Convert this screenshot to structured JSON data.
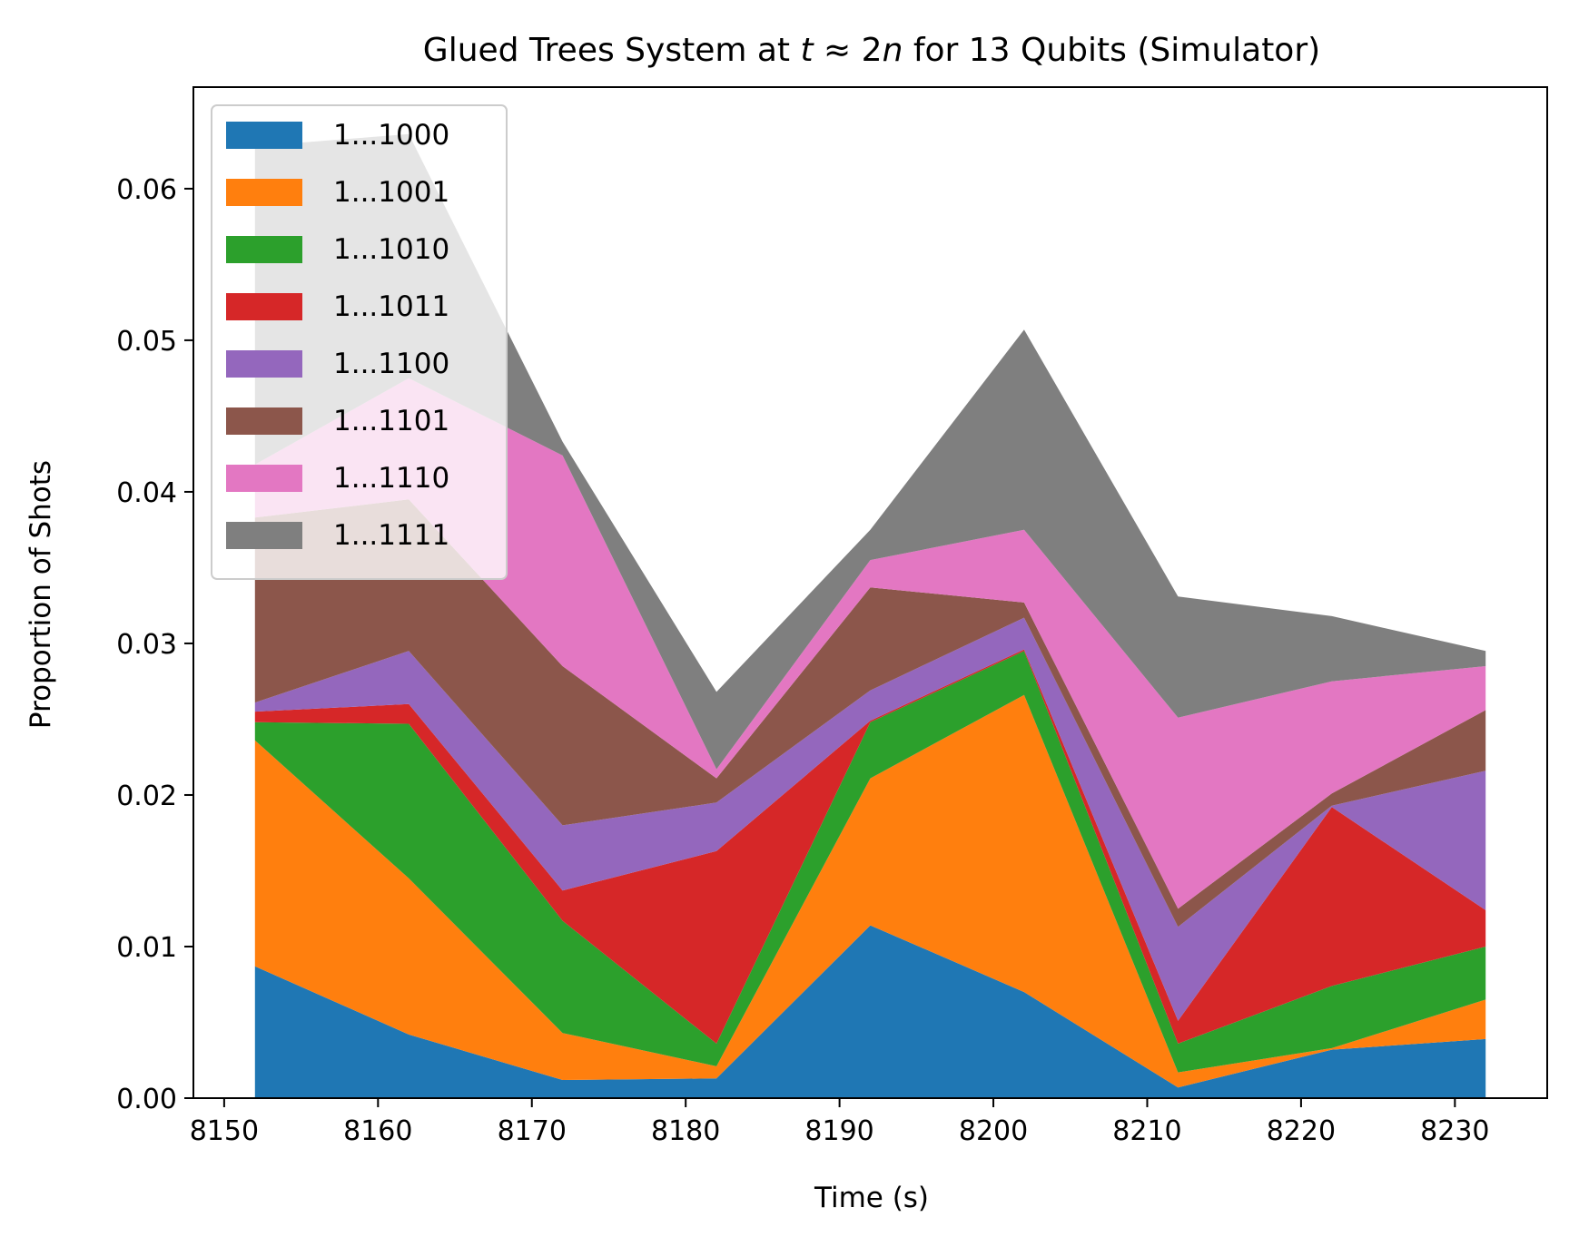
{
  "chart_data": {
    "type": "area",
    "stacked": true,
    "title_prefix": "Glued Trees System at ",
    "title_math_t": "t",
    "title_math_mid": " ≈ 2",
    "title_math_n": "n",
    "title_suffix": " for 13 Qubits (Simulator)",
    "xlabel": "Time (s)",
    "ylabel": "Proportion of Shots",
    "xlim": [
      8148,
      8236
    ],
    "ylim": [
      0,
      0.0667
    ],
    "xticks": [
      8150,
      8160,
      8170,
      8180,
      8190,
      8200,
      8210,
      8220,
      8230
    ],
    "xtick_labels": [
      "8150",
      "8160",
      "8170",
      "8180",
      "8190",
      "8200",
      "8210",
      "8220",
      "8230"
    ],
    "yticks": [
      0,
      0.01,
      0.02,
      0.03,
      0.04,
      0.05,
      0.06
    ],
    "ytick_labels": [
      "0.00",
      "0.01",
      "0.02",
      "0.03",
      "0.04",
      "0.05",
      "0.06"
    ],
    "legend_position": "upper-left",
    "grid": false,
    "x": [
      8152,
      8162,
      8172,
      8182,
      8192,
      8202,
      8212,
      8222,
      8232
    ],
    "series": [
      {
        "name": "1...1000",
        "color": "#1f77b4",
        "values": [
          0.0087,
          0.0042,
          0.0012,
          0.0013,
          0.0114,
          0.007,
          0.0007,
          0.0032,
          0.0039
        ]
      },
      {
        "name": "1...1001",
        "color": "#ff7f0e",
        "values": [
          0.0149,
          0.0103,
          0.0031,
          0.0008,
          0.0097,
          0.0196,
          0.001,
          0.0001,
          0.0026
        ]
      },
      {
        "name": "1...1010",
        "color": "#2ca02c",
        "values": [
          0.0012,
          0.0102,
          0.0074,
          0.0015,
          0.0037,
          0.0029,
          0.0019,
          0.0041,
          0.0035
        ]
      },
      {
        "name": "1...1011",
        "color": "#d62728",
        "values": [
          0.0007,
          0.0013,
          0.002,
          0.0127,
          0.0001,
          0.0001,
          0.0015,
          0.0118,
          0.0024
        ]
      },
      {
        "name": "1...1100",
        "color": "#9467bd",
        "values": [
          0.0006,
          0.0035,
          0.0043,
          0.0032,
          0.002,
          0.0021,
          0.0062,
          0.0001,
          0.0092
        ]
      },
      {
        "name": "1...1101",
        "color": "#8c564b",
        "values": [
          0.0122,
          0.01,
          0.0105,
          0.0016,
          0.0068,
          0.001,
          0.0012,
          0.0008,
          0.004
        ]
      },
      {
        "name": "1...1110",
        "color": "#e377c2",
        "values": [
          0.0035,
          0.008,
          0.0139,
          0.0006,
          0.0018,
          0.0048,
          0.0126,
          0.0074,
          0.0029
        ]
      },
      {
        "name": "1...1111",
        "color": "#7f7f7f",
        "values": [
          0.021,
          0.0161,
          0.0009,
          0.0051,
          0.002,
          0.0132,
          0.008,
          0.0043,
          0.001
        ]
      }
    ]
  }
}
